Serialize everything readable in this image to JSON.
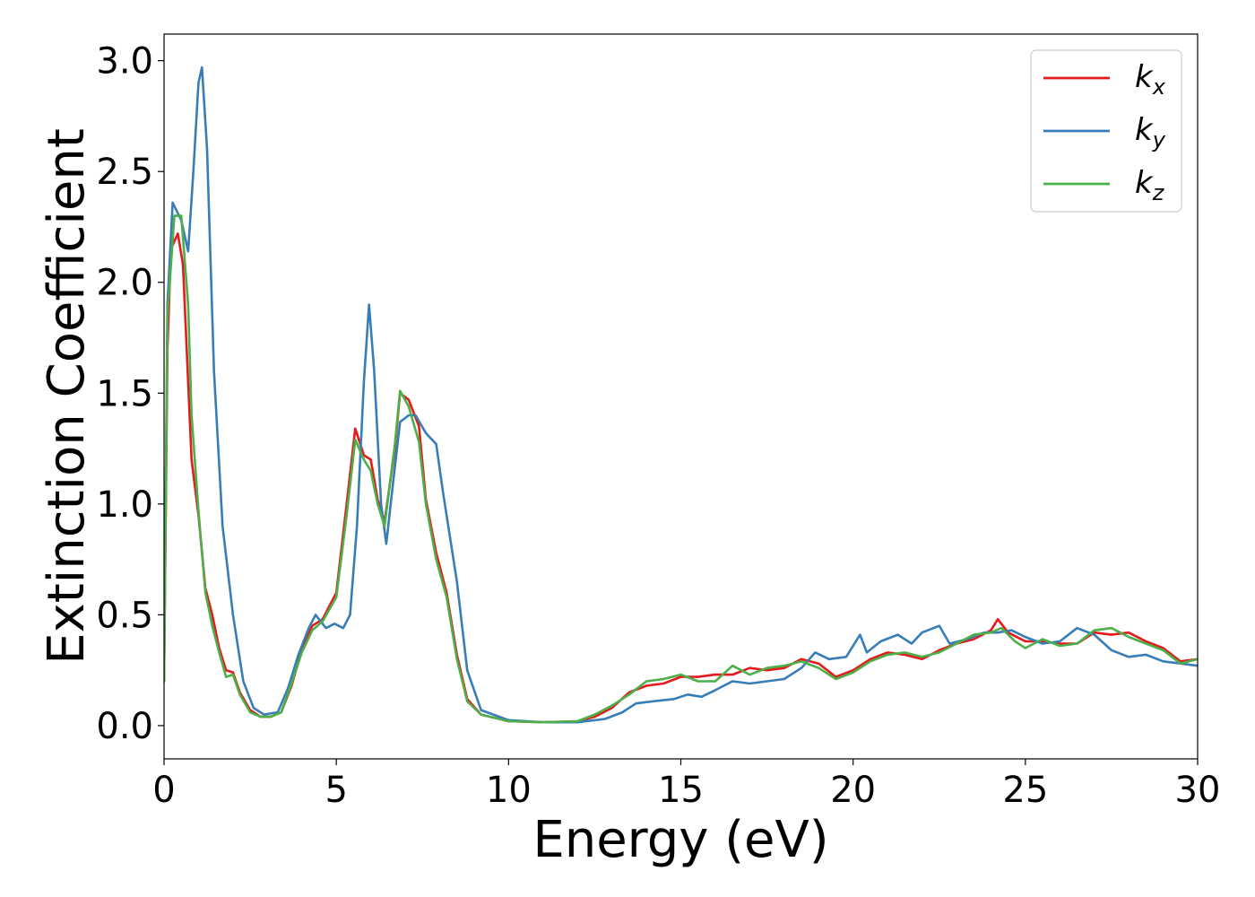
{
  "chart_data": {
    "type": "line",
    "title": "",
    "xlabel": "Energy (eV)",
    "ylabel": "Extinction Coefficient",
    "xlim": [
      0,
      30
    ],
    "ylim": [
      -0.15,
      3.12
    ],
    "xticks": [
      0,
      5,
      10,
      15,
      20,
      25,
      30
    ],
    "xtick_labels": [
      "0",
      "5",
      "10",
      "15",
      "20",
      "25",
      "30"
    ],
    "yticks": [
      0.0,
      0.5,
      1.0,
      1.5,
      2.0,
      2.5,
      3.0
    ],
    "ytick_labels": [
      "0.0",
      "0.5",
      "1.0",
      "1.5",
      "2.0",
      "2.5",
      "3.0"
    ],
    "grid": false,
    "legend_position": "top-right",
    "series": [
      {
        "name": "k",
        "subscript": "x",
        "color": "#e41a1c",
        "points": [
          [
            0,
            0.2
          ],
          [
            0.1,
            1.7
          ],
          [
            0.2,
            2.15
          ],
          [
            0.4,
            2.22
          ],
          [
            0.55,
            2.08
          ],
          [
            0.8,
            1.2
          ],
          [
            1.0,
            0.95
          ],
          [
            1.2,
            0.62
          ],
          [
            1.4,
            0.5
          ],
          [
            1.6,
            0.35
          ],
          [
            1.8,
            0.25
          ],
          [
            2.0,
            0.24
          ],
          [
            2.2,
            0.15
          ],
          [
            2.5,
            0.07
          ],
          [
            2.8,
            0.04
          ],
          [
            3.1,
            0.04
          ],
          [
            3.4,
            0.06
          ],
          [
            3.7,
            0.18
          ],
          [
            4.0,
            0.34
          ],
          [
            4.3,
            0.45
          ],
          [
            4.6,
            0.48
          ],
          [
            5.0,
            0.6
          ],
          [
            5.3,
            1.0
          ],
          [
            5.55,
            1.34
          ],
          [
            5.8,
            1.22
          ],
          [
            6.0,
            1.2
          ],
          [
            6.2,
            1.02
          ],
          [
            6.4,
            0.92
          ],
          [
            6.7,
            1.25
          ],
          [
            6.85,
            1.5
          ],
          [
            7.1,
            1.47
          ],
          [
            7.4,
            1.35
          ],
          [
            7.6,
            1.02
          ],
          [
            7.9,
            0.78
          ],
          [
            8.2,
            0.6
          ],
          [
            8.5,
            0.32
          ],
          [
            8.8,
            0.12
          ],
          [
            9.2,
            0.05
          ],
          [
            10,
            0.02
          ],
          [
            11,
            0.015
          ],
          [
            12,
            0.02
          ],
          [
            12.5,
            0.04
          ],
          [
            13.0,
            0.08
          ],
          [
            13.5,
            0.15
          ],
          [
            14.0,
            0.18
          ],
          [
            14.5,
            0.19
          ],
          [
            15.0,
            0.22
          ],
          [
            15.5,
            0.22
          ],
          [
            16.0,
            0.23
          ],
          [
            16.5,
            0.23
          ],
          [
            17.0,
            0.26
          ],
          [
            17.5,
            0.25
          ],
          [
            18.0,
            0.26
          ],
          [
            18.5,
            0.3
          ],
          [
            19.0,
            0.28
          ],
          [
            19.5,
            0.22
          ],
          [
            20.0,
            0.25
          ],
          [
            20.5,
            0.3
          ],
          [
            21.0,
            0.33
          ],
          [
            21.5,
            0.32
          ],
          [
            22.0,
            0.3
          ],
          [
            22.5,
            0.34
          ],
          [
            23.0,
            0.37
          ],
          [
            23.5,
            0.39
          ],
          [
            24.0,
            0.43
          ],
          [
            24.2,
            0.48
          ],
          [
            24.5,
            0.42
          ],
          [
            25.0,
            0.38
          ],
          [
            25.5,
            0.38
          ],
          [
            26.0,
            0.37
          ],
          [
            26.5,
            0.37
          ],
          [
            27.0,
            0.42
          ],
          [
            27.5,
            0.41
          ],
          [
            28.0,
            0.42
          ],
          [
            28.5,
            0.38
          ],
          [
            29.0,
            0.35
          ],
          [
            29.5,
            0.29
          ],
          [
            30.0,
            0.3
          ]
        ]
      },
      {
        "name": "k",
        "subscript": "y",
        "color": "#377eb8",
        "points": [
          [
            0,
            0.2
          ],
          [
            0.1,
            1.9
          ],
          [
            0.25,
            2.36
          ],
          [
            0.5,
            2.28
          ],
          [
            0.7,
            2.14
          ],
          [
            0.85,
            2.5
          ],
          [
            1.0,
            2.9
          ],
          [
            1.1,
            2.97
          ],
          [
            1.25,
            2.6
          ],
          [
            1.45,
            1.6
          ],
          [
            1.7,
            0.9
          ],
          [
            2.0,
            0.5
          ],
          [
            2.3,
            0.2
          ],
          [
            2.6,
            0.08
          ],
          [
            2.9,
            0.05
          ],
          [
            3.3,
            0.06
          ],
          [
            3.6,
            0.17
          ],
          [
            3.9,
            0.32
          ],
          [
            4.2,
            0.44
          ],
          [
            4.4,
            0.5
          ],
          [
            4.7,
            0.44
          ],
          [
            4.95,
            0.46
          ],
          [
            5.2,
            0.44
          ],
          [
            5.4,
            0.5
          ],
          [
            5.6,
            0.9
          ],
          [
            5.8,
            1.55
          ],
          [
            5.95,
            1.9
          ],
          [
            6.1,
            1.6
          ],
          [
            6.3,
            1.0
          ],
          [
            6.45,
            0.82
          ],
          [
            6.65,
            1.1
          ],
          [
            6.85,
            1.37
          ],
          [
            7.1,
            1.4
          ],
          [
            7.3,
            1.4
          ],
          [
            7.6,
            1.32
          ],
          [
            7.9,
            1.27
          ],
          [
            8.1,
            1.05
          ],
          [
            8.5,
            0.65
          ],
          [
            8.8,
            0.25
          ],
          [
            9.2,
            0.07
          ],
          [
            10,
            0.025
          ],
          [
            11,
            0.015
          ],
          [
            12,
            0.015
          ],
          [
            12.8,
            0.03
          ],
          [
            13.3,
            0.06
          ],
          [
            13.7,
            0.1
          ],
          [
            14.2,
            0.11
          ],
          [
            14.8,
            0.12
          ],
          [
            15.2,
            0.14
          ],
          [
            15.6,
            0.13
          ],
          [
            16.0,
            0.16
          ],
          [
            16.5,
            0.2
          ],
          [
            17.0,
            0.19
          ],
          [
            17.5,
            0.2
          ],
          [
            18.0,
            0.21
          ],
          [
            18.5,
            0.26
          ],
          [
            18.9,
            0.33
          ],
          [
            19.3,
            0.3
          ],
          [
            19.8,
            0.31
          ],
          [
            20.2,
            0.41
          ],
          [
            20.4,
            0.33
          ],
          [
            20.8,
            0.38
          ],
          [
            21.3,
            0.41
          ],
          [
            21.7,
            0.37
          ],
          [
            22.0,
            0.42
          ],
          [
            22.5,
            0.45
          ],
          [
            22.8,
            0.37
          ],
          [
            23.3,
            0.39
          ],
          [
            23.8,
            0.42
          ],
          [
            24.2,
            0.42
          ],
          [
            24.6,
            0.43
          ],
          [
            25.0,
            0.4
          ],
          [
            25.5,
            0.37
          ],
          [
            26.0,
            0.38
          ],
          [
            26.5,
            0.44
          ],
          [
            27.0,
            0.41
          ],
          [
            27.5,
            0.34
          ],
          [
            28.0,
            0.31
          ],
          [
            28.5,
            0.32
          ],
          [
            29.0,
            0.29
          ],
          [
            29.5,
            0.28
          ],
          [
            30.0,
            0.27
          ]
        ]
      },
      {
        "name": "k",
        "subscript": "z",
        "color": "#4daf4a",
        "points": [
          [
            0,
            0.2
          ],
          [
            0.1,
            1.85
          ],
          [
            0.3,
            2.3
          ],
          [
            0.5,
            2.3
          ],
          [
            0.7,
            1.9
          ],
          [
            0.8,
            1.4
          ],
          [
            1.0,
            0.97
          ],
          [
            1.2,
            0.6
          ],
          [
            1.4,
            0.45
          ],
          [
            1.6,
            0.33
          ],
          [
            1.8,
            0.22
          ],
          [
            2.0,
            0.23
          ],
          [
            2.2,
            0.14
          ],
          [
            2.5,
            0.06
          ],
          [
            2.8,
            0.04
          ],
          [
            3.1,
            0.04
          ],
          [
            3.4,
            0.06
          ],
          [
            3.7,
            0.19
          ],
          [
            4.0,
            0.33
          ],
          [
            4.3,
            0.43
          ],
          [
            4.6,
            0.47
          ],
          [
            5.0,
            0.58
          ],
          [
            5.3,
            0.95
          ],
          [
            5.55,
            1.29
          ],
          [
            5.8,
            1.2
          ],
          [
            6.0,
            1.15
          ],
          [
            6.2,
            1.0
          ],
          [
            6.4,
            0.9
          ],
          [
            6.7,
            1.27
          ],
          [
            6.85,
            1.51
          ],
          [
            7.1,
            1.44
          ],
          [
            7.4,
            1.28
          ],
          [
            7.6,
            1.0
          ],
          [
            7.9,
            0.75
          ],
          [
            8.2,
            0.58
          ],
          [
            8.5,
            0.3
          ],
          [
            8.8,
            0.11
          ],
          [
            9.2,
            0.05
          ],
          [
            10,
            0.02
          ],
          [
            11,
            0.015
          ],
          [
            12,
            0.02
          ],
          [
            12.5,
            0.05
          ],
          [
            13.0,
            0.09
          ],
          [
            13.5,
            0.14
          ],
          [
            14.0,
            0.2
          ],
          [
            14.5,
            0.21
          ],
          [
            15.0,
            0.23
          ],
          [
            15.5,
            0.2
          ],
          [
            16.0,
            0.2
          ],
          [
            16.5,
            0.27
          ],
          [
            17.0,
            0.23
          ],
          [
            17.5,
            0.26
          ],
          [
            18.0,
            0.27
          ],
          [
            18.5,
            0.29
          ],
          [
            19.0,
            0.26
          ],
          [
            19.5,
            0.21
          ],
          [
            20.0,
            0.24
          ],
          [
            20.5,
            0.29
          ],
          [
            21.0,
            0.32
          ],
          [
            21.5,
            0.33
          ],
          [
            22.0,
            0.31
          ],
          [
            22.5,
            0.33
          ],
          [
            23.0,
            0.37
          ],
          [
            23.5,
            0.41
          ],
          [
            24.0,
            0.42
          ],
          [
            24.3,
            0.44
          ],
          [
            24.7,
            0.38
          ],
          [
            25.0,
            0.35
          ],
          [
            25.5,
            0.39
          ],
          [
            26.0,
            0.36
          ],
          [
            26.5,
            0.37
          ],
          [
            27.0,
            0.43
          ],
          [
            27.5,
            0.44
          ],
          [
            28.0,
            0.4
          ],
          [
            28.5,
            0.37
          ],
          [
            29.0,
            0.34
          ],
          [
            29.5,
            0.28
          ],
          [
            30.0,
            0.3
          ]
        ]
      }
    ]
  }
}
